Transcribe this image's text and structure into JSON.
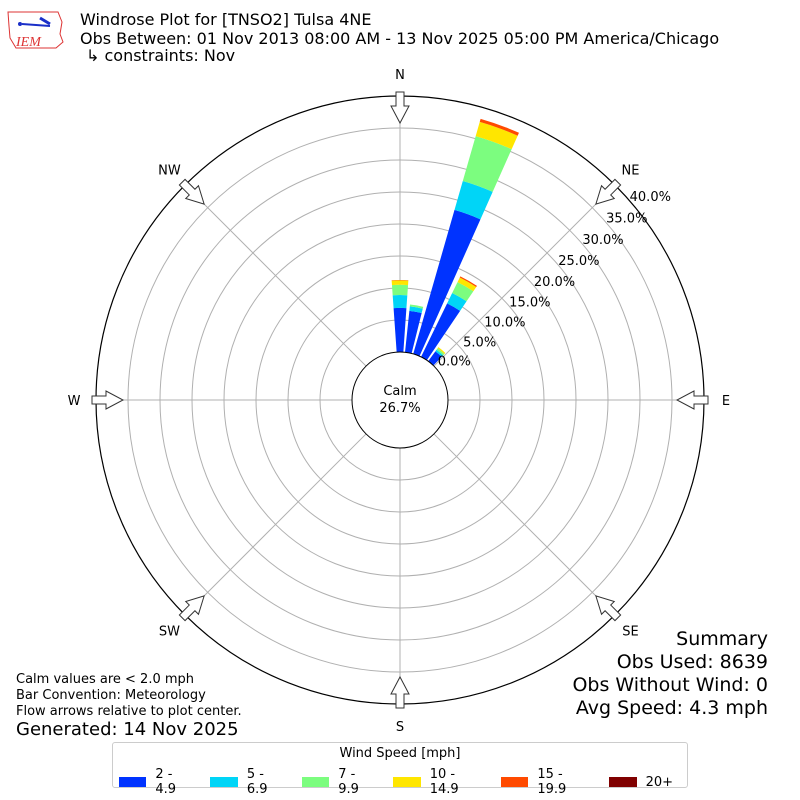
{
  "header": {
    "logo_text": "IEM",
    "title": "Windrose Plot for [TNSO2] Tulsa 4NE",
    "subtitle": "Obs Between: 01 Nov 2013 08:00 AM - 13 Nov 2025 05:00 PM America/Chicago",
    "constraints": "↳ constraints: Nov"
  },
  "notes": {
    "calm_note": "Calm values are < 2.0 mph",
    "bar_convention": "Bar Convention: Meteorology",
    "flow_note": "Flow arrows relative to plot center.",
    "generated": "Generated: 14 Nov 2025"
  },
  "summary": {
    "title": "Summary",
    "obs_used": "Obs Used: 8639",
    "obs_without_wind": "Obs Without Wind: 0",
    "avg_speed": "Avg Speed: 4.3 mph"
  },
  "chart_data": {
    "type": "windrose",
    "calm_label": "Calm",
    "calm_value": "26.7%",
    "directions": [
      "N",
      "NE",
      "E",
      "SE",
      "S",
      "SW",
      "W",
      "NW"
    ],
    "radial_ticks": [
      "0.0%",
      "5.0%",
      "10.0%",
      "15.0%",
      "20.0%",
      "25.0%",
      "30.0%",
      "35.0%",
      "40.0%"
    ],
    "rlim": [
      0,
      40
    ],
    "grid": true,
    "legend": {
      "title": "Wind Speed [mph]",
      "placement": "bottom",
      "bins": [
        "2 - 4.9",
        "5 - 6.9",
        "7 - 9.9",
        "10 - 14.9",
        "15 - 19.9",
        "20+"
      ],
      "colors": [
        "#0033ff",
        "#00d5f7",
        "#7cfd7f",
        "#ffe600",
        "#ff4a00",
        "#800000"
      ]
    },
    "bars": [
      {
        "direction_deg": 0,
        "cumulative_percent": [
          6.9,
          8.9,
          10.5,
          11.2,
          11.25,
          11.25
        ]
      },
      {
        "direction_deg": 10,
        "cumulative_percent": [
          6.5,
          7.2,
          7.5,
          7.5,
          7.5,
          7.5
        ]
      },
      {
        "direction_deg": 20,
        "cumulative_percent": [
          23.4,
          28.1,
          35.4,
          37.7,
          38.2,
          38.2
        ]
      },
      {
        "direction_deg": 30,
        "cumulative_percent": [
          9.3,
          11.1,
          13.0,
          13.8,
          14.0,
          14.0
        ]
      },
      {
        "direction_deg": 40,
        "cumulative_percent": [
          1.9,
          2.2,
          2.5,
          2.7,
          2.7,
          2.7
        ]
      }
    ]
  }
}
